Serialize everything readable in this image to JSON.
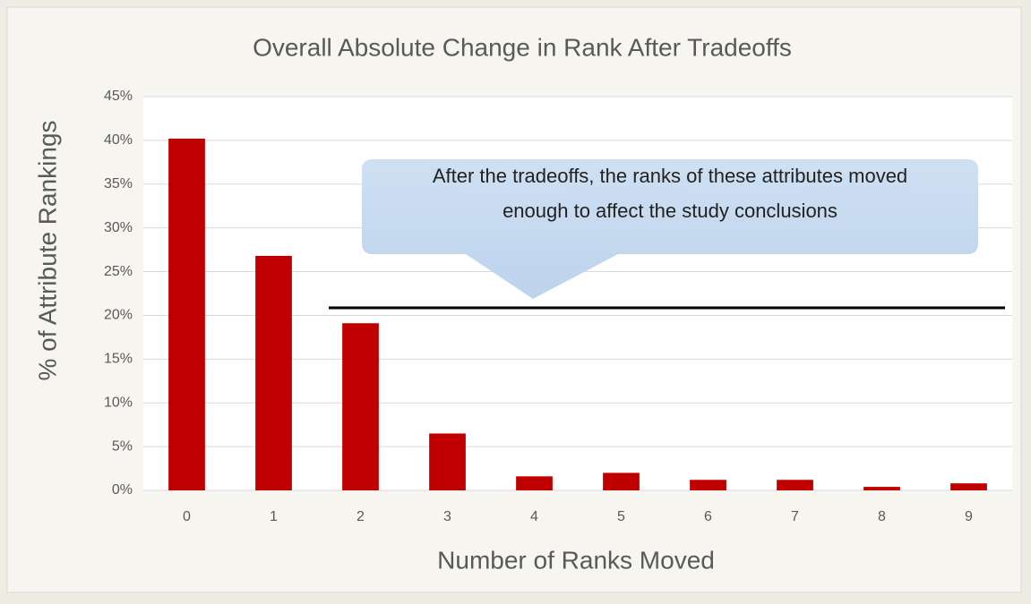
{
  "chart_data": {
    "type": "bar",
    "title": "Overall Absolute Change in Rank After Tradeoffs",
    "x_label": "Number of Ranks Moved",
    "y_label": "% of Attribute Rankings",
    "annotation": [
      "After the tradeoffs, the ranks of these attributes moved",
      "enough to affect the study conclusions"
    ],
    "categories": [
      "0",
      "1",
      "2",
      "3",
      "4",
      "5",
      "6",
      "7",
      "8",
      "9"
    ],
    "values": [
      40.2,
      26.8,
      19.1,
      6.5,
      1.6,
      2.0,
      1.2,
      1.2,
      0.4,
      0.8
    ],
    "color": "#c00000",
    "ylim": [
      0,
      45
    ],
    "yticks": [
      {
        "value": 0,
        "label": "0%"
      },
      {
        "value": 5,
        "label": "5%"
      },
      {
        "value": 10,
        "label": "10%"
      },
      {
        "value": 15,
        "label": "15%"
      },
      {
        "value": 20,
        "label": "20%"
      },
      {
        "value": 25,
        "label": "25%"
      },
      {
        "value": 30,
        "label": "30%"
      },
      {
        "value": 35,
        "label": "35%"
      },
      {
        "value": 40,
        "label": "40%"
      },
      {
        "value": 45,
        "label": "45%"
      }
    ],
    "grid": true
  }
}
